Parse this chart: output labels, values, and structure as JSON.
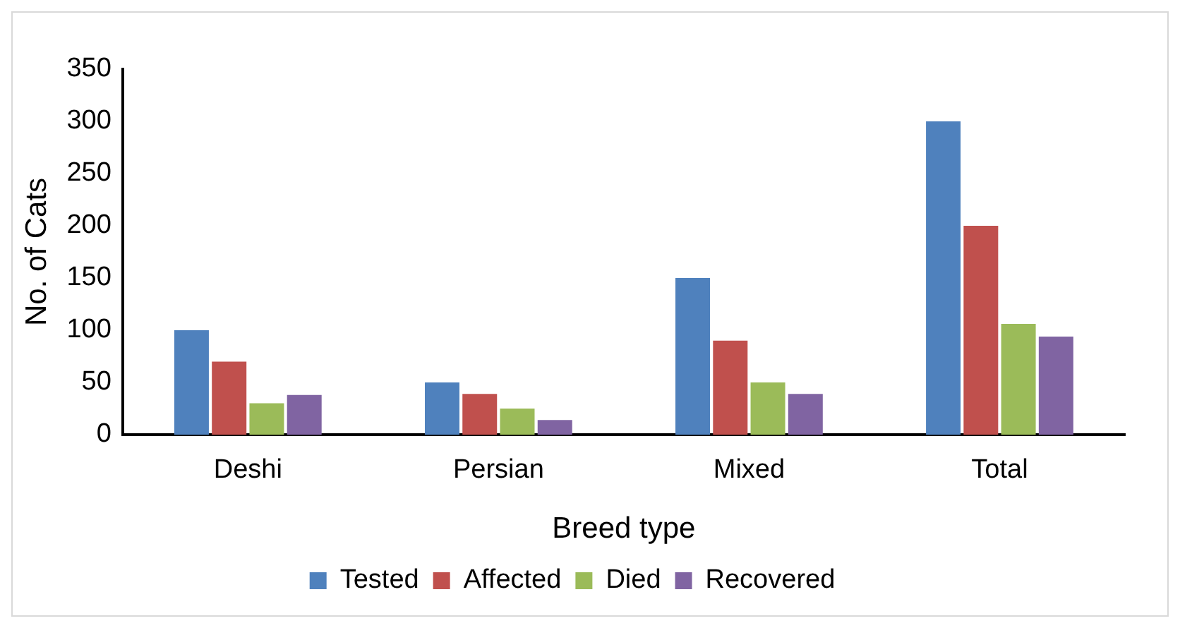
{
  "chart_data": {
    "type": "bar",
    "xlabel": "Breed type",
    "ylabel": "No. of Cats",
    "categories": [
      "Deshi",
      "Persian",
      "Mixed",
      "Total"
    ],
    "series": [
      {
        "name": "Tested",
        "color": "#4f81bd",
        "values": [
          100,
          50,
          150,
          300
        ]
      },
      {
        "name": "Affected",
        "color": "#c0504d",
        "values": [
          70,
          39,
          90,
          200
        ]
      },
      {
        "name": "Died",
        "color": "#9bbb59",
        "values": [
          30,
          25,
          50,
          106
        ]
      },
      {
        "name": "Recovered",
        "color": "#8064a2",
        "values": [
          38,
          14,
          39,
          94
        ]
      }
    ],
    "ylim": [
      0,
      350
    ],
    "yticks": [
      0,
      50,
      100,
      150,
      200,
      250,
      300,
      350
    ],
    "grid": false,
    "legend": "bottom"
  }
}
